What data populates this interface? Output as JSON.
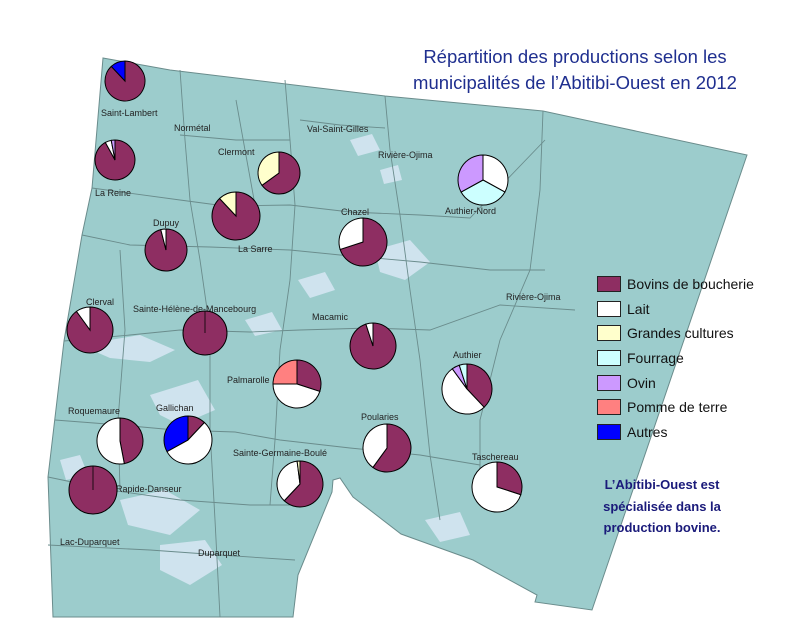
{
  "title_lines": [
    "Répartition des productions selon les",
    "municipalités de l’Abitibi-Ouest en 2012"
  ],
  "legend": [
    {
      "label": "Bovins de boucherie",
      "color": "#8e2e62"
    },
    {
      "label": "Lait",
      "color": "#ffffff"
    },
    {
      "label": "Grandes cultures",
      "color": "#ffffcc"
    },
    {
      "label": "Fourrage",
      "color": "#ccffff"
    },
    {
      "label": "Ovin",
      "color": "#cc99ff"
    },
    {
      "label": "Pomme de terre",
      "color": "#ff8080"
    },
    {
      "label": "Autres",
      "color": "#0000ff"
    }
  ],
  "note_lines": [
    "L’Abitibi-Ouest est",
    "spécialisée dans la",
    "production bovine."
  ],
  "colors": {
    "land": "#9ccccc",
    "water": "#cfe3ee",
    "boundary": "#6a8c8c",
    "pie_outline": "#000000"
  },
  "municipalities": [
    {
      "name": "Saint-Lambert",
      "pie": {
        "Bovins de boucherie": 0.88,
        "Autres": 0.12
      }
    },
    {
      "name": "Normétal"
    },
    {
      "name": "La Reine",
      "pie": {
        "Bovins de boucherie": 0.92,
        "Lait": 0.05,
        "Ovin": 0.03
      }
    },
    {
      "name": "Clermont",
      "pie": {
        "Bovins de boucherie": 0.65,
        "Grandes cultures": 0.35
      }
    },
    {
      "name": "Val-Saint-Gilles"
    },
    {
      "name": "Rivière-Ojima"
    },
    {
      "name": "Authier-Nord",
      "pie": {
        "Lait": 0.33,
        "Fourrage": 0.34,
        "Ovin": 0.33
      }
    },
    {
      "name": "Dupuy",
      "pie": {
        "Bovins de boucherie": 0.96,
        "Lait": 0.04
      }
    },
    {
      "name": "La Sarre",
      "pie": {
        "Bovins de boucherie": 0.88,
        "Grandes cultures": 0.12
      }
    },
    {
      "name": "Chazel",
      "pie": {
        "Bovins de boucherie": 0.7,
        "Lait": 0.3
      }
    },
    {
      "name": "Rivière-Ojima"
    },
    {
      "name": "Clerval",
      "pie": {
        "Bovins de boucherie": 0.9,
        "Lait": 0.1
      }
    },
    {
      "name": "Sainte-Hélène-de-Mancebourg",
      "pie": {
        "Bovins de boucherie": 1.0
      }
    },
    {
      "name": "Macamic",
      "pie": {
        "Bovins de boucherie": 0.95,
        "Lait": 0.05
      }
    },
    {
      "name": "Palmarolle",
      "pie": {
        "Bovins de boucherie": 0.3,
        "Lait": 0.45,
        "Pomme de terre": 0.25
      }
    },
    {
      "name": "Authier",
      "pie": {
        "Bovins de boucherie": 0.38,
        "Lait": 0.52,
        "Ovin": 0.05,
        "Fourrage": 0.05
      }
    },
    {
      "name": "Roquemaure",
      "pie": {
        "Bovins de boucherie": 0.47,
        "Lait": 0.53
      }
    },
    {
      "name": "Gallichan",
      "pie": {
        "Bovins de boucherie": 0.12,
        "Lait": 0.55,
        "Autres": 0.33
      }
    },
    {
      "name": "Poularies",
      "pie": {
        "Bovins de boucherie": 0.6,
        "Lait": 0.4
      }
    },
    {
      "name": "Sainte-Germaine-Boulé",
      "pie": {
        "Bovins de boucherie": 0.62,
        "Lait": 0.36,
        "Grandes cultures": 0.02
      }
    },
    {
      "name": "Taschereau",
      "pie": {
        "Bovins de boucherie": 0.3,
        "Lait": 0.7
      }
    },
    {
      "name": "Rapide-Danseur",
      "pie": {
        "Bovins de boucherie": 1.0
      }
    },
    {
      "name": "Lac-Duparquet"
    },
    {
      "name": "Duparquet"
    }
  ]
}
